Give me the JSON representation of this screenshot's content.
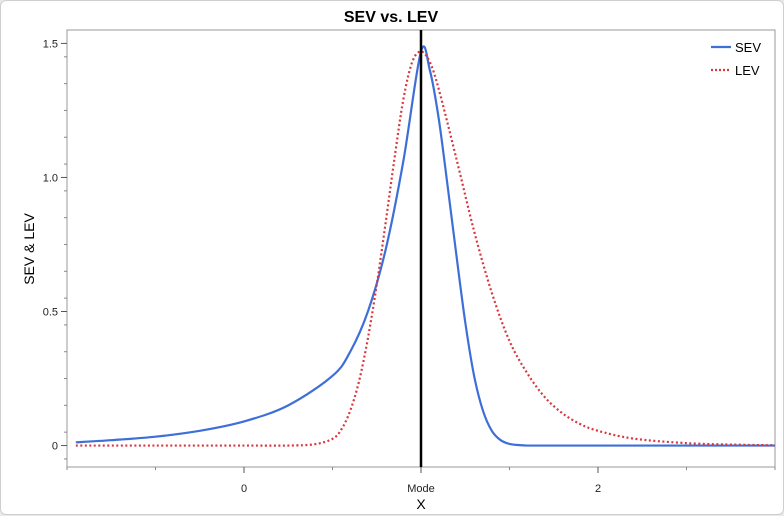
{
  "chart_data": {
    "type": "line",
    "title": "SEV vs. LEV",
    "xlabel": "X",
    "ylabel": "SEV & LEV",
    "xlim": [
      -1.0,
      3.0
    ],
    "ylim": [
      -0.08,
      1.55
    ],
    "x_ticks": [
      {
        "value": 0,
        "label": "0"
      },
      {
        "value": 1,
        "label": "Mode"
      },
      {
        "value": 2,
        "label": "2"
      }
    ],
    "y_ticks": [
      {
        "value": 0,
        "label": "0"
      },
      {
        "value": 0.5,
        "label": "0.5"
      },
      {
        "value": 1.0,
        "label": "1.0"
      },
      {
        "value": 1.5,
        "label": "1.5"
      }
    ],
    "mode_x": 1,
    "legend_position": "top-right",
    "grid": false,
    "series": [
      {
        "name": "SEV",
        "color": "#3e6fd8",
        "style": "solid",
        "x": [
          -0.95,
          -0.75,
          -0.5,
          -0.25,
          0.0,
          0.25,
          0.5,
          0.6,
          0.7,
          0.8,
          0.9,
          1.0,
          1.05,
          1.1,
          1.15,
          1.2,
          1.25,
          1.3,
          1.35,
          1.4,
          1.45,
          1.5,
          1.55,
          1.6,
          1.7,
          1.8,
          2.0,
          2.5,
          3.0
        ],
        "y": [
          0.012,
          0.02,
          0.033,
          0.055,
          0.09,
          0.15,
          0.26,
          0.35,
          0.5,
          0.73,
          1.06,
          1.47,
          1.4,
          1.22,
          0.97,
          0.71,
          0.46,
          0.26,
          0.13,
          0.055,
          0.02,
          0.006,
          0.002,
          0.0,
          0.0,
          0.0,
          0.0,
          0.0,
          0.0
        ]
      },
      {
        "name": "LEV",
        "color": "#d9363e",
        "style": "dotted",
        "x": [
          -0.95,
          -0.5,
          0.0,
          0.25,
          0.4,
          0.5,
          0.55,
          0.6,
          0.65,
          0.7,
          0.75,
          0.8,
          0.85,
          0.9,
          0.95,
          1.0,
          1.05,
          1.1,
          1.2,
          1.3,
          1.4,
          1.5,
          1.6,
          1.7,
          1.8,
          1.9,
          2.0,
          2.2,
          2.5,
          2.8,
          3.0
        ],
        "y": [
          0.0,
          0.0,
          0.0,
          0.0,
          0.005,
          0.025,
          0.06,
          0.13,
          0.24,
          0.4,
          0.6,
          0.83,
          1.07,
          1.29,
          1.43,
          1.47,
          1.43,
          1.33,
          1.07,
          0.8,
          0.57,
          0.39,
          0.27,
          0.18,
          0.12,
          0.08,
          0.055,
          0.026,
          0.009,
          0.003,
          0.001
        ]
      }
    ]
  }
}
